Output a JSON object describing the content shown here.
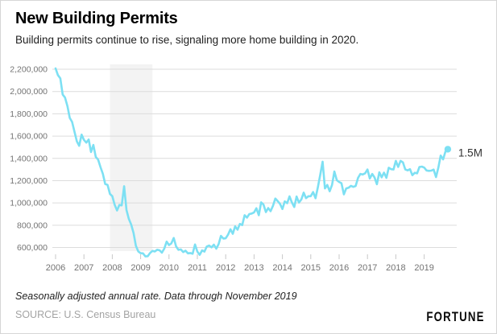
{
  "header": {
    "title": "New Building Permits",
    "subtitle": "Building permits continue to rise, signaling more home building in 2020."
  },
  "footer": {
    "note": "Seasonally adjusted annual rate. Data through November 2019",
    "source": "SOURCE: U.S. Census Bureau",
    "brand": "FORTUNE"
  },
  "colors": {
    "line": "#7de0f3",
    "recession_band": "#f3f3f3",
    "gridline": "#dcdcdc",
    "tick": "#c8c8c8",
    "axis_text": "#737373",
    "annotation_text": "#333333"
  },
  "chart_data": {
    "type": "line",
    "title": "New Building Permits",
    "ylabel": "",
    "xlabel": "",
    "unit": "building permits, thousands, seasonally adjusted annual rate",
    "x_monthly_start": "2006-01",
    "x_monthly_end": "2019-11",
    "x_tick_labels": [
      "2006",
      "2007",
      "2008",
      "2009",
      "2010",
      "2011",
      "2012",
      "2013",
      "2014",
      "2015",
      "2016",
      "2017",
      "2018",
      "2019"
    ],
    "y_tick_values": [
      600000,
      800000,
      1000000,
      1200000,
      1400000,
      1600000,
      1800000,
      2000000,
      2200000
    ],
    "y_tick_labels": [
      "600,000",
      "800,000",
      "1,000,000",
      "1,200,000",
      "1,400,000",
      "1,600,000",
      "1,800,000",
      "2,000,000",
      "2,200,000"
    ],
    "ylim": [
      600000,
      2200000
    ],
    "grid": "horizontal",
    "legend": "none",
    "recession_band": {
      "start": "2007-12",
      "end": "2009-06"
    },
    "end_label": "1.5M",
    "series": [
      {
        "name": "New building permits (thousands, SAAR)",
        "values": [
          2207,
          2147,
          2118,
          1973,
          1946,
          1869,
          1763,
          1727,
          1638,
          1553,
          1513,
          1613,
          1566,
          1541,
          1569,
          1457,
          1520,
          1413,
          1389,
          1322,
          1261,
          1170,
          1162,
          1080,
          1061,
          984,
          932,
          982,
          978,
          1150,
          937,
          857,
          805,
          730,
          615,
          564,
          549,
          547,
          520,
          522,
          550,
          570,
          564,
          580,
          575,
          554,
          589,
          653,
          622,
          637,
          685,
          610,
          579,
          583,
          559,
          571,
          547,
          550,
          544,
          627,
          563,
          534,
          574,
          563,
          609,
          617,
          601,
          625,
          589,
          630,
          704,
          680,
          682,
          715,
          764,
          723,
          790,
          760,
          812,
          801,
          890,
          868,
          900,
          905,
          915,
          952,
          890,
          1005,
          985,
          918,
          954,
          926,
          974,
          1039,
          1017,
          991,
          945,
          1014,
          997,
          1059,
          1005,
          963,
          1057,
          1003,
          1031,
          1092,
          1043,
          1060,
          1060,
          1098,
          1042,
          1140,
          1250,
          1370,
          1130,
          1161,
          1105,
          1161,
          1282,
          1204,
          1188,
          1177,
          1077,
          1130,
          1136,
          1153,
          1144,
          1152,
          1225,
          1260,
          1255,
          1266,
          1300,
          1219,
          1260,
          1228,
          1168,
          1275,
          1230,
          1272,
          1225,
          1316,
          1303,
          1300,
          1377,
          1323,
          1377,
          1364,
          1301,
          1292,
          1303,
          1249,
          1270,
          1265,
          1322,
          1326,
          1317,
          1291,
          1288,
          1290,
          1299,
          1232,
          1317,
          1425,
          1391,
          1461,
          1482
        ]
      }
    ]
  }
}
